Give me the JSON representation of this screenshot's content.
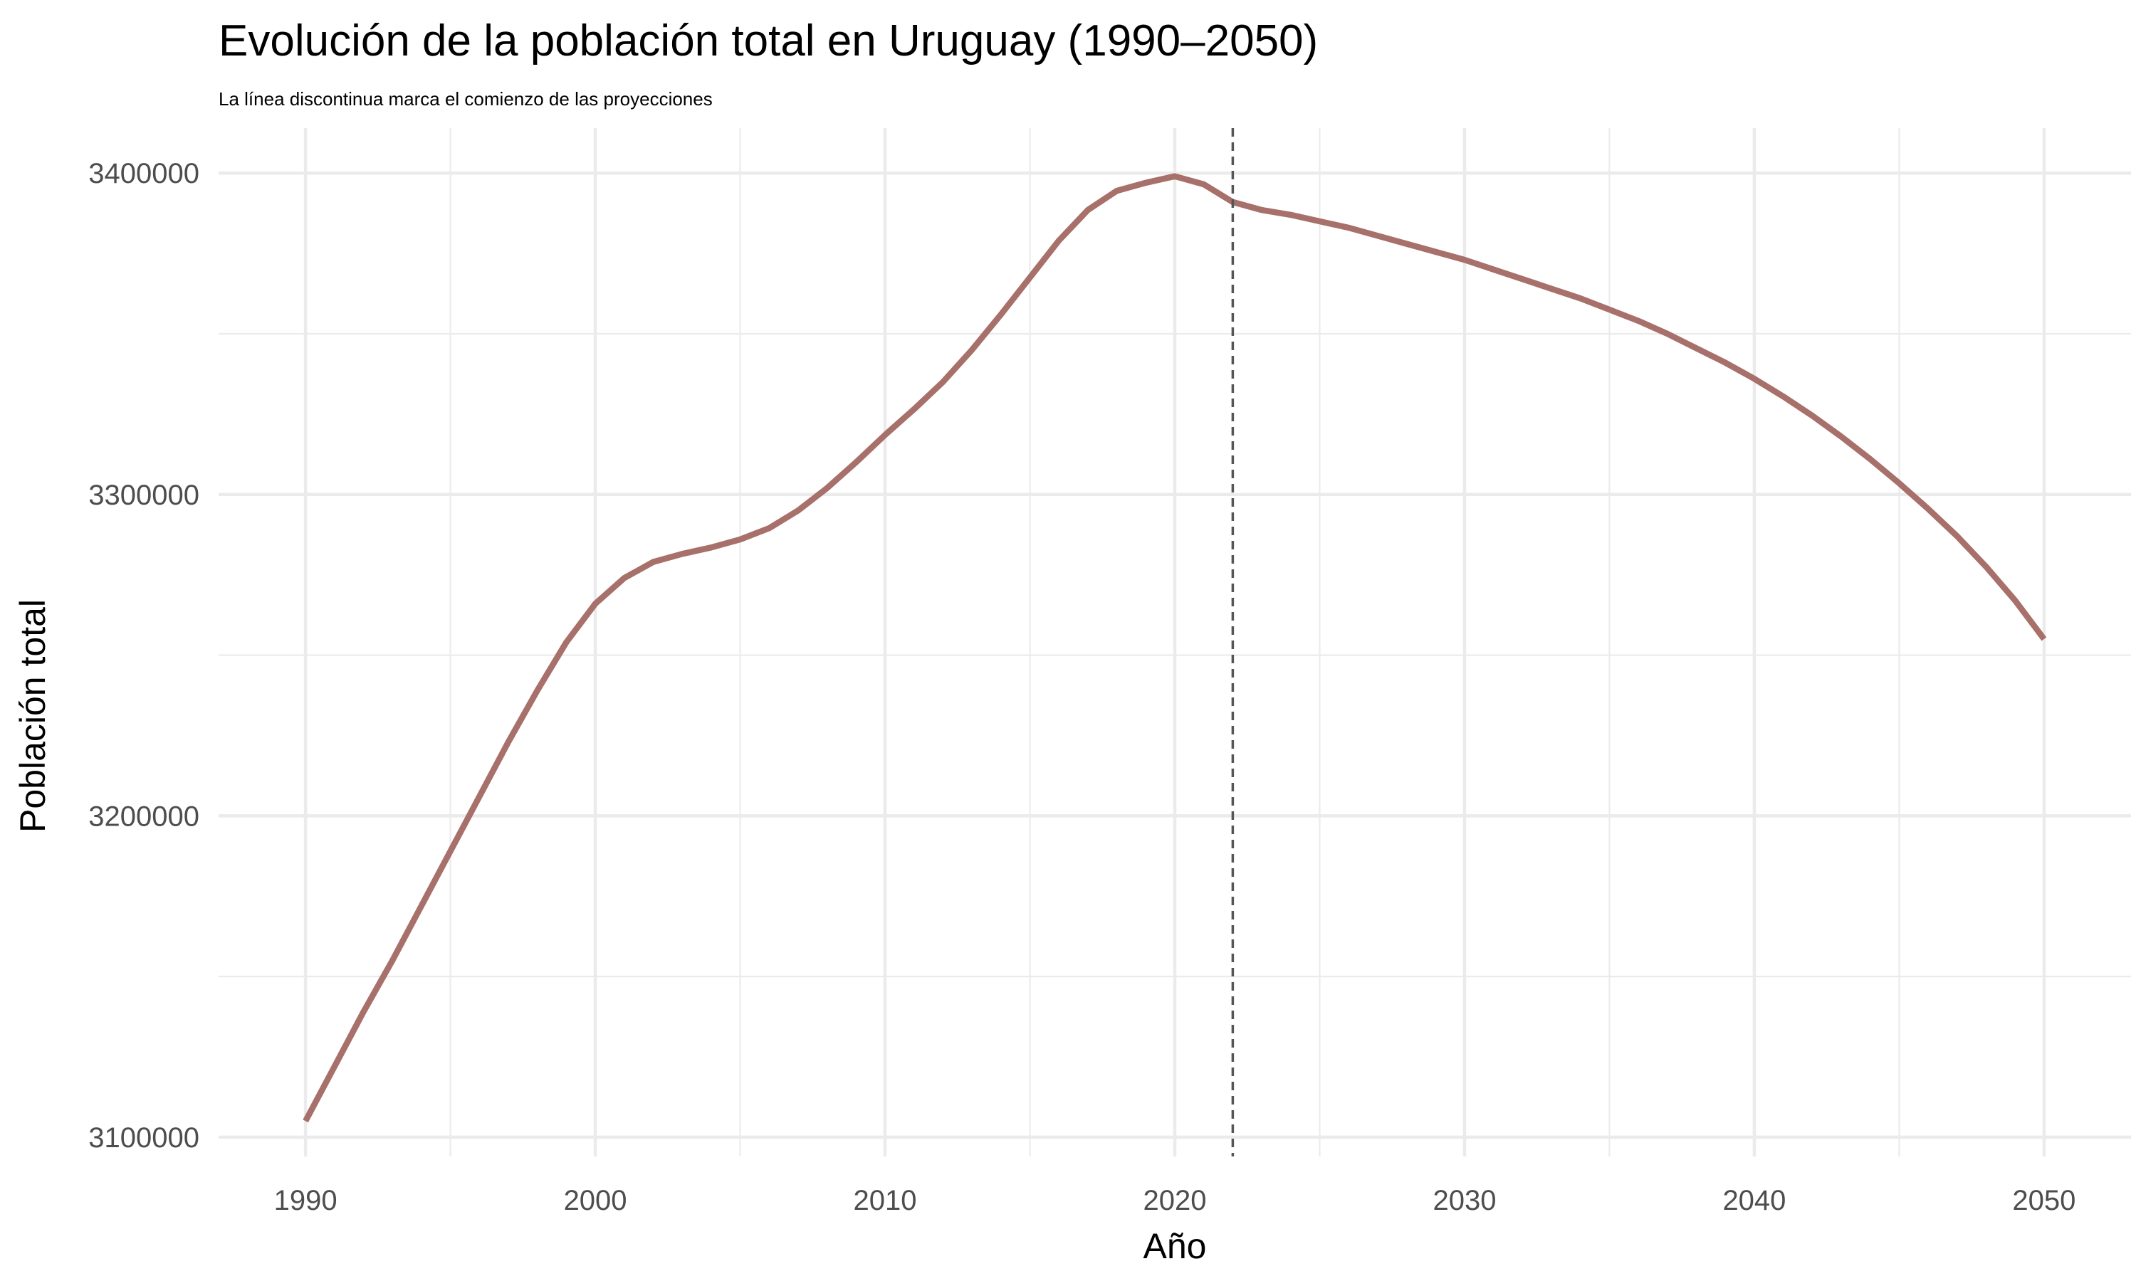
{
  "chart_data": {
    "type": "line",
    "title": "Evolución de la población total en Uruguay (1990–2050)",
    "subtitle": "La línea discontinua marca el comienzo de las proyecciones",
    "xlabel": "Año",
    "ylabel": "Población total",
    "xlim": [
      1987,
      2053
    ],
    "ylim": [
      3094000,
      3414000
    ],
    "x_ticks": [
      1990,
      2000,
      2010,
      2020,
      2030,
      2040,
      2050
    ],
    "x_minor_ticks": [
      1995,
      2005,
      2015,
      2025,
      2035,
      2045
    ],
    "y_ticks": [
      3100000,
      3200000,
      3300000,
      3400000
    ],
    "y_minor_ticks": [
      3150000,
      3250000,
      3350000
    ],
    "grid": true,
    "legend": "none",
    "projection_start_year": 2022,
    "line_color": "#A8706A",
    "reference_line_color": "#555555",
    "series": [
      {
        "x": [
          1990,
          1991,
          1992,
          1993,
          1994,
          1995,
          1996,
          1997,
          1998,
          1999,
          2000,
          2001,
          2002,
          2003,
          2004,
          2005,
          2006,
          2007,
          2008,
          2009,
          2010,
          2011,
          2012,
          2013,
          2014,
          2015,
          2016,
          2017,
          2018,
          2019,
          2020,
          2021,
          2022,
          2023,
          2024,
          2025,
          2026,
          2027,
          2028,
          2029,
          2030,
          2031,
          2032,
          2033,
          2034,
          2035,
          2036,
          2037,
          2038,
          2039,
          2040,
          2041,
          2042,
          2043,
          2044,
          2045,
          2046,
          2047,
          2048,
          2049,
          2050
        ],
        "values": [
          3105000,
          3122000,
          3139000,
          3155000,
          3172000,
          3189000,
          3206000,
          3223000,
          3239000,
          3254000,
          3266000,
          3274000,
          3279000,
          3281500,
          3283500,
          3286000,
          3289500,
          3295000,
          3302000,
          3310000,
          3318500,
          3326500,
          3335000,
          3345000,
          3356000,
          3367500,
          3379000,
          3388500,
          3394500,
          3397000,
          3399000,
          3396500,
          3391000,
          3388500,
          3387000,
          3385000,
          3383000,
          3380500,
          3378000,
          3375500,
          3373000,
          3370000,
          3367000,
          3364000,
          3361000,
          3357500,
          3354000,
          3350000,
          3345500,
          3341000,
          3336000,
          3330500,
          3324500,
          3318000,
          3311000,
          3303500,
          3295500,
          3287000,
          3277500,
          3267000,
          3255000
        ]
      }
    ]
  }
}
